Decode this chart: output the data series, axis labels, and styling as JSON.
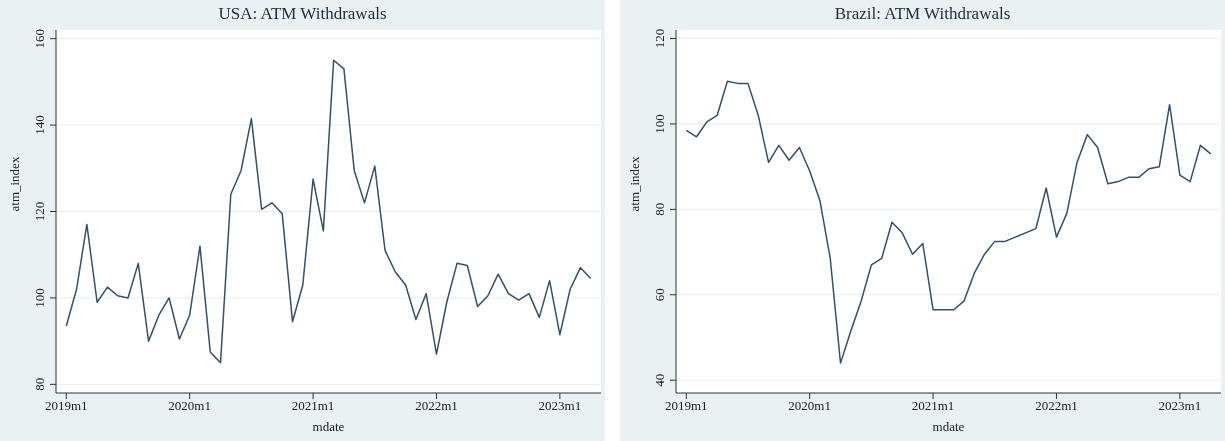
{
  "chart_data": [
    {
      "type": "line",
      "title": "USA: ATM Withdrawals",
      "xlabel": "mdate",
      "ylabel": "atm_index",
      "grid": "y",
      "legend": false,
      "marker": "none",
      "line_style": "solid",
      "x": [
        "2019-01",
        "2019-02",
        "2019-03",
        "2019-04",
        "2019-05",
        "2019-06",
        "2019-07",
        "2019-08",
        "2019-09",
        "2019-10",
        "2019-11",
        "2019-12",
        "2020-01",
        "2020-02",
        "2020-03",
        "2020-04",
        "2020-05",
        "2020-06",
        "2020-07",
        "2020-08",
        "2020-09",
        "2020-10",
        "2020-11",
        "2020-12",
        "2021-01",
        "2021-02",
        "2021-03",
        "2021-04",
        "2021-05",
        "2021-06",
        "2021-07",
        "2021-08",
        "2021-09",
        "2021-10",
        "2021-11",
        "2021-12",
        "2022-01",
        "2022-02",
        "2022-03",
        "2022-04",
        "2022-05",
        "2022-06",
        "2022-07",
        "2022-08",
        "2022-09",
        "2022-10",
        "2022-11",
        "2022-12",
        "2023-01",
        "2023-02",
        "2023-03",
        "2023-04"
      ],
      "xlim": [
        "2018-12",
        "2023-05"
      ],
      "xticks": [
        {
          "value": "2019-01",
          "label": "2019m1"
        },
        {
          "value": "2020-01",
          "label": "2020m1"
        },
        {
          "value": "2021-01",
          "label": "2021m1"
        },
        {
          "value": "2022-01",
          "label": "2022m1"
        },
        {
          "value": "2023-01",
          "label": "2023m1"
        }
      ],
      "ylim": [
        78,
        162
      ],
      "yticks": [
        80,
        100,
        120,
        140,
        160
      ],
      "series": [
        {
          "color": "#34506b",
          "values": [
            93.5,
            102,
            117,
            99,
            102.5,
            100.5,
            100,
            108,
            90,
            96,
            100,
            90.5,
            96,
            112,
            87.5,
            85,
            124,
            129.5,
            141.5,
            120.5,
            122,
            119.5,
            94.5,
            103,
            127.5,
            115.5,
            155,
            153,
            129.5,
            122,
            130.5,
            111,
            106,
            103,
            95,
            101,
            87,
            99,
            108,
            107.5,
            98,
            100.5,
            105.5,
            101,
            99.5,
            101,
            95.5,
            104,
            91.5,
            102,
            107,
            104.5
          ]
        }
      ]
    },
    {
      "type": "line",
      "title": "Brazil: ATM Withdrawals",
      "xlabel": "mdate",
      "ylabel": "atm_index",
      "grid": "y",
      "legend": false,
      "marker": "none",
      "line_style": "solid",
      "x": [
        "2019-01",
        "2019-02",
        "2019-03",
        "2019-04",
        "2019-05",
        "2019-06",
        "2019-07",
        "2019-08",
        "2019-09",
        "2019-10",
        "2019-11",
        "2019-12",
        "2020-01",
        "2020-02",
        "2020-03",
        "2020-04",
        "2020-05",
        "2020-06",
        "2020-07",
        "2020-08",
        "2020-09",
        "2020-10",
        "2020-11",
        "2020-12",
        "2021-01",
        "2021-02",
        "2021-03",
        "2021-04",
        "2021-05",
        "2021-06",
        "2021-07",
        "2021-08",
        "2021-09",
        "2021-10",
        "2021-11",
        "2021-12",
        "2022-01",
        "2022-02",
        "2022-03",
        "2022-04",
        "2022-05",
        "2022-06",
        "2022-07",
        "2022-08",
        "2022-09",
        "2022-10",
        "2022-11",
        "2022-12",
        "2023-01",
        "2023-02",
        "2023-03",
        "2023-04"
      ],
      "xlim": [
        "2018-12",
        "2023-05"
      ],
      "xticks": [
        {
          "value": "2019-01",
          "label": "2019m1"
        },
        {
          "value": "2020-01",
          "label": "2020m1"
        },
        {
          "value": "2021-01",
          "label": "2021m1"
        },
        {
          "value": "2022-01",
          "label": "2022m1"
        },
        {
          "value": "2023-01",
          "label": "2023m1"
        }
      ],
      "ylim": [
        37,
        122
      ],
      "yticks": [
        40,
        60,
        80,
        100,
        120
      ],
      "series": [
        {
          "color": "#34506b",
          "values": [
            98.5,
            97,
            100.5,
            102,
            110,
            109.5,
            109.5,
            102,
            91,
            95,
            91.5,
            94.5,
            89,
            82,
            68.5,
            44,
            51.5,
            58.5,
            67,
            68.5,
            77,
            74.5,
            69.5,
            72,
            56.5,
            56.5,
            56.5,
            58.5,
            65,
            69.5,
            72.5,
            72.5,
            73.5,
            74.5,
            75.5,
            85,
            73.5,
            79,
            91,
            97.5,
            94.5,
            86,
            86.5,
            87.5,
            87.5,
            89.5,
            90,
            104.5,
            88,
            86.5,
            95,
            93
          ]
        }
      ]
    }
  ]
}
